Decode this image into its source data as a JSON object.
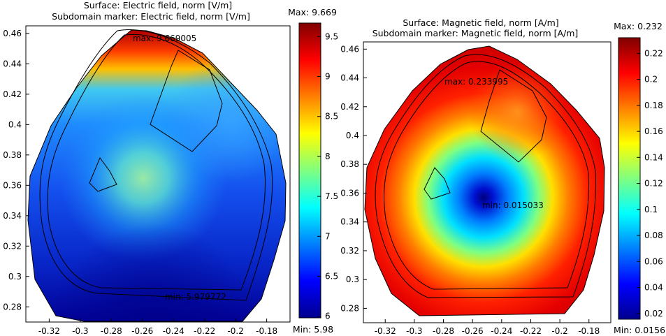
{
  "chart_data": [
    {
      "type": "heatmap",
      "title_line1": "Surface: Electric field, norm [V/m]",
      "title_line2": "Subdomain marker: Electric field, norm [V/m]",
      "x_ticks": [
        "-0.32",
        "-0.3",
        "-0.28",
        "-0.26",
        "-0.24",
        "-0.22",
        "-0.2",
        "-0.18"
      ],
      "y_ticks": [
        "0.46",
        "0.44",
        "0.42",
        "0.4",
        "0.38",
        "0.36",
        "0.34",
        "0.32",
        "0.3",
        "0.28"
      ],
      "xlim": [
        -0.335,
        -0.165
      ],
      "ylim": [
        0.27,
        0.465
      ],
      "colorbar": {
        "max_label": "Max: 9.669",
        "min_label": "Min: 5.98",
        "ticks": [
          "9.5",
          "9",
          "8.5",
          "8",
          "7.5",
          "7",
          "6.5",
          "6"
        ],
        "range": [
          5.98,
          9.669
        ]
      },
      "annotations": [
        {
          "text": "max: 9.669005"
        },
        {
          "text": "min: 5.979772"
        }
      ]
    },
    {
      "type": "heatmap",
      "title_line1": "Surface: Magnetic field, norm [A/m]",
      "title_line2": "Subdomain marker: Magnetic field, norm [A/m]",
      "x_ticks": [
        "-0.32",
        "-0.3",
        "-0.28",
        "-0.26",
        "-0.24",
        "-0.22",
        "-0.2",
        "-0.18"
      ],
      "y_ticks": [
        "0.46",
        "0.44",
        "0.42",
        "0.4",
        "0.38",
        "0.36",
        "0.34",
        "0.32",
        "0.3",
        "0.28"
      ],
      "xlim": [
        -0.335,
        -0.165
      ],
      "ylim": [
        0.27,
        0.465
      ],
      "colorbar": {
        "max_label": "Max: 0.232",
        "min_label": "Min: 0.0156",
        "ticks": [
          "0.22",
          "0.2",
          "0.18",
          "0.16",
          "0.14",
          "0.12",
          "0.1",
          "0.08",
          "0.06",
          "0.04",
          "0.02"
        ],
        "range": [
          0.0156,
          0.232
        ]
      },
      "annotations": [
        {
          "text": "max: 0.233995"
        },
        {
          "text": "min: 0.015033"
        }
      ]
    }
  ]
}
